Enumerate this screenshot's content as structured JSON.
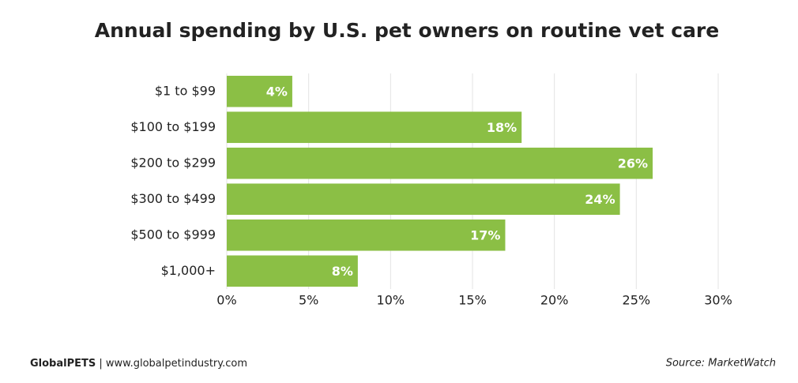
{
  "chart_data": {
    "type": "hbar",
    "title": "Annual spending by U.S. pet owners on routine vet care",
    "categories": [
      "$1 to $99",
      "$100 to $199",
      "$200 to $299",
      "$300 to $499",
      "$500 to $999",
      "$1,000+"
    ],
    "values": [
      4,
      18,
      26,
      24,
      17,
      8
    ],
    "value_labels": [
      "4%",
      "18%",
      "26%",
      "24%",
      "17%",
      "8%"
    ],
    "color": "#8bbf45",
    "xlim": [
      0,
      30
    ],
    "xticks": [
      {
        "value": 0,
        "label": "0%"
      },
      {
        "value": 5,
        "label": "5%"
      },
      {
        "value": 10,
        "label": "10%"
      },
      {
        "value": 15,
        "label": "15%"
      },
      {
        "value": 20,
        "label": "20%"
      },
      {
        "value": 25,
        "label": "25%"
      },
      {
        "value": 30,
        "label": "30%"
      }
    ],
    "grid": true,
    "brand": "GlobalPETS",
    "site": "| www.globalpetindustry.com",
    "source": "Source: MarketWatch"
  }
}
